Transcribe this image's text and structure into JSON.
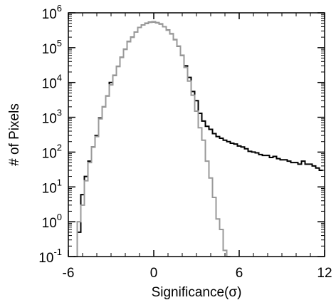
{
  "chart_data": {
    "type": "line",
    "style": "step-histogram",
    "xlabel": "Significance(σ)",
    "ylabel": "# of Pixels",
    "xlim": [
      -6,
      12
    ],
    "ylim": [
      0.1,
      1000000
    ],
    "yscale": "log",
    "grid": false,
    "x_ticks": [
      {
        "value": -6,
        "label": "-6"
      },
      {
        "value": 0,
        "label": "0"
      },
      {
        "value": 6,
        "label": "6"
      },
      {
        "value": 12,
        "label": "12"
      }
    ],
    "y_ticks": [
      {
        "value": 0.1,
        "base": "10",
        "exp": "-1"
      },
      {
        "value": 1,
        "base": "10",
        "exp": "0"
      },
      {
        "value": 10,
        "base": "10",
        "exp": "1"
      },
      {
        "value": 100,
        "base": "10",
        "exp": "2"
      },
      {
        "value": 1000,
        "base": "10",
        "exp": "3"
      },
      {
        "value": 10000,
        "base": "10",
        "exp": "4"
      },
      {
        "value": 100000,
        "base": "10",
        "exp": "5"
      },
      {
        "value": 1000000,
        "base": "10",
        "exp": "6"
      }
    ],
    "bin_width": 0.25,
    "series": [
      {
        "color": "#000000",
        "x": [
          -5.5,
          -5.25,
          -5.0,
          -4.75,
          -4.5,
          -4.25,
          -4.0,
          -3.75,
          -3.5,
          -3.25,
          -3.0,
          -2.75,
          -2.5,
          -2.25,
          -2.0,
          -1.75,
          -1.5,
          -1.25,
          -1.0,
          -0.75,
          -0.5,
          -0.25,
          0.0,
          0.25,
          0.5,
          0.75,
          1.0,
          1.25,
          1.5,
          1.75,
          2.0,
          2.25,
          2.5,
          2.75,
          3.0,
          3.25,
          3.5,
          3.75,
          4.0,
          4.25,
          4.5,
          4.75,
          5.0,
          5.25,
          5.5,
          5.75,
          6.0,
          6.25,
          6.5,
          6.75,
          7.0,
          7.25,
          7.5,
          7.75,
          8.0,
          8.25,
          8.5,
          8.75,
          9.0,
          9.25,
          9.5,
          9.75,
          10.0,
          10.25,
          10.5,
          10.75,
          11.0,
          11.25,
          11.5,
          11.75
        ],
        "y": [
          0.1,
          0.5,
          6,
          20,
          55,
          140,
          300,
          950,
          2000,
          4100,
          10000,
          16000,
          29000,
          53000,
          90000,
          150000,
          200000,
          280000,
          380000,
          450000,
          500000,
          540000,
          550000,
          520000,
          480000,
          400000,
          320000,
          250000,
          170000,
          110000,
          60000,
          30000,
          14000,
          5500,
          3000,
          1300,
          780,
          550,
          450,
          340,
          280,
          250,
          220,
          200,
          180,
          170,
          150,
          140,
          125,
          105,
          100,
          95,
          85,
          80,
          80,
          70,
          75,
          65,
          60,
          60,
          55,
          50,
          50,
          45,
          55,
          45,
          45,
          40,
          35,
          30
        ]
      },
      {
        "color": "#999999",
        "x": [
          -5.5,
          -5.25,
          -5.0,
          -4.75,
          -4.5,
          -4.25,
          -4.0,
          -3.75,
          -3.5,
          -3.25,
          -3.0,
          -2.75,
          -2.5,
          -2.25,
          -2.0,
          -1.75,
          -1.5,
          -1.25,
          -1.0,
          -0.75,
          -0.5,
          -0.25,
          0.0,
          0.25,
          0.5,
          0.75,
          1.0,
          1.25,
          1.5,
          1.75,
          2.0,
          2.25,
          2.5,
          2.75,
          3.0,
          3.25,
          3.5,
          3.75,
          4.0,
          4.25,
          4.5,
          4.75,
          5.0,
          5.25
        ],
        "y": [
          0.1,
          1,
          3,
          15,
          50,
          140,
          280,
          900,
          2000,
          4100,
          8500,
          16000,
          29000,
          53000,
          90000,
          150000,
          200000,
          280000,
          380000,
          450000,
          500000,
          540000,
          550000,
          520000,
          480000,
          400000,
          320000,
          250000,
          170000,
          110000,
          60000,
          27000,
          11000,
          4300,
          1500,
          500,
          220,
          55,
          18,
          5,
          1.2,
          0.6,
          0.15,
          0.1
        ]
      }
    ]
  }
}
